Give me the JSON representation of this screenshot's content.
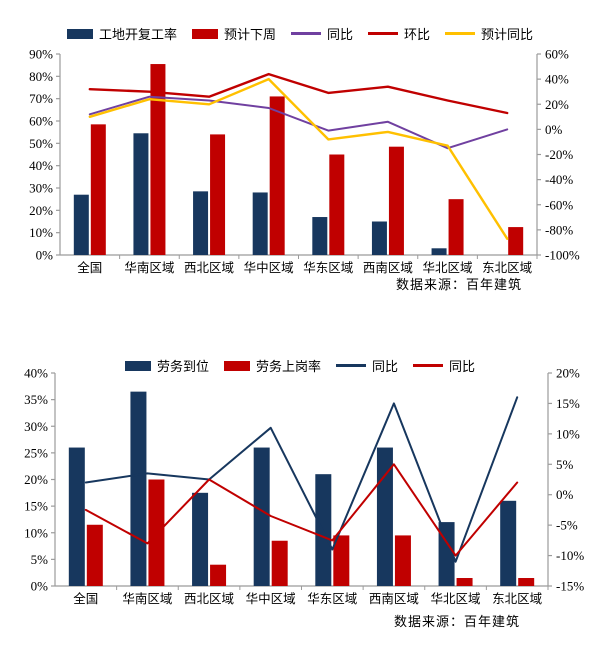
{
  "chart_data": [
    {
      "type": "bar+line",
      "title": "",
      "categories": [
        "全国",
        "华南区域",
        "西北区域",
        "华中区域",
        "华东区域",
        "西南区域",
        "华北区域",
        "东北区域"
      ],
      "bar_series": [
        {
          "name": "工地开复工率",
          "color": "#17375E",
          "axis": "left",
          "values": [
            27,
            54.5,
            28.5,
            28,
            17,
            15,
            3,
            0
          ]
        },
        {
          "name": "预计下周",
          "color": "#C00000",
          "axis": "left",
          "values": [
            58.5,
            85.5,
            54,
            71,
            45,
            48.5,
            25,
            12.5
          ]
        }
      ],
      "line_series": [
        {
          "name": "同比",
          "color": "#7040A0",
          "axis": "right",
          "width": 2,
          "values": [
            12,
            26,
            23,
            17,
            -1,
            6,
            -15,
            0
          ]
        },
        {
          "name": "环比",
          "color": "#C00000",
          "axis": "right",
          "width": 2.4,
          "values": [
            32,
            30,
            26,
            44,
            29,
            34,
            23,
            13
          ]
        },
        {
          "name": "预计同比",
          "color": "#FFC000",
          "axis": "right",
          "width": 2.4,
          "values": [
            10,
            24,
            20,
            40,
            -8,
            -2,
            -13,
            -87
          ]
        }
      ],
      "left_axis": {
        "min": 0,
        "max": 90,
        "step": 10,
        "unit": "%"
      },
      "right_axis": {
        "min": -100,
        "max": 60,
        "step": 20,
        "unit": "%"
      },
      "grid": false,
      "legend_position": "top",
      "source": "数据来源：百年建筑"
    },
    {
      "type": "bar+line",
      "title": "",
      "categories": [
        "全国",
        "华南区域",
        "西北区域",
        "华中区域",
        "华东区域",
        "西南区域",
        "华北区域",
        "东北区域"
      ],
      "bar_series": [
        {
          "name": "劳务到位",
          "color": "#17375E",
          "axis": "left",
          "values": [
            26,
            36.5,
            17.5,
            26,
            21,
            26,
            12,
            16
          ]
        },
        {
          "name": "劳务上岗率",
          "color": "#C00000",
          "axis": "left",
          "values": [
            11.5,
            20,
            4,
            8.5,
            9.5,
            9.5,
            1.5,
            1.5
          ]
        }
      ],
      "line_series": [
        {
          "name": "同比",
          "color": "#17375E",
          "axis": "right",
          "width": 2,
          "values": [
            2,
            3.5,
            2.5,
            11,
            -9,
            15,
            -11,
            16
          ]
        },
        {
          "name": "同比",
          "color": "#C00000",
          "axis": "right",
          "width": 2,
          "values": [
            -2.5,
            -8,
            2.5,
            -3.5,
            -7.5,
            5,
            -10,
            2
          ]
        }
      ],
      "left_axis": {
        "min": 0,
        "max": 40,
        "step": 5,
        "unit": "%"
      },
      "right_axis": {
        "min": -15,
        "max": 20,
        "step": 5,
        "unit": "%"
      },
      "grid": false,
      "legend_position": "top",
      "source": "数据来源：百年建筑"
    }
  ]
}
